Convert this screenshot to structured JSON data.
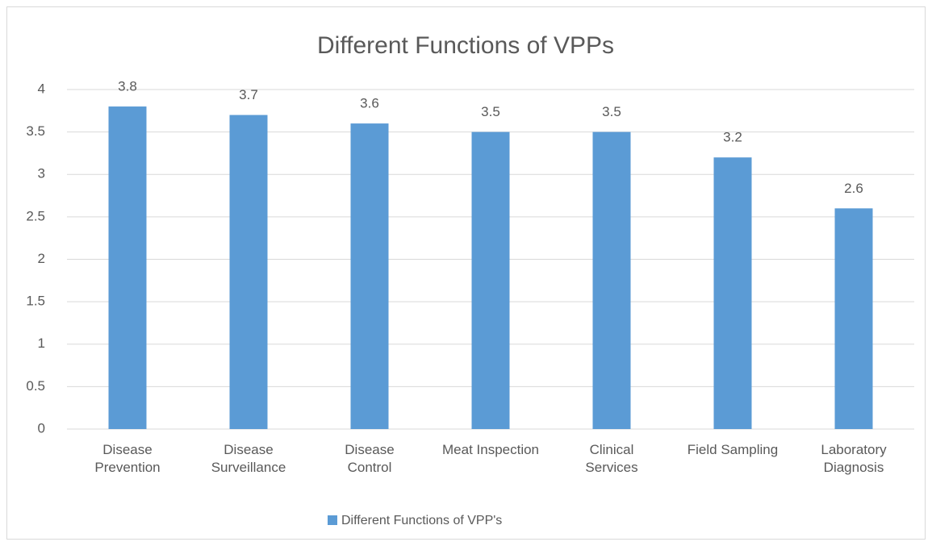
{
  "chart_data": {
    "type": "bar",
    "title": "Different Functions of VPPs",
    "categories": [
      "Disease Prevention",
      "Disease Surveillance",
      "Disease Control",
      "Meat Inspection",
      "Clinical Services",
      "Field Sampling",
      "Laboratory Diagnosis"
    ],
    "series": [
      {
        "name": "Different Functions of VPP's",
        "color": "#5b9bd5",
        "values": [
          3.8,
          3.7,
          3.6,
          3.5,
          3.5,
          3.2,
          2.6
        ]
      }
    ],
    "ylim": [
      0,
      4
    ],
    "yticks": [
      0,
      0.5,
      1,
      1.5,
      2,
      2.5,
      3,
      3.5,
      4
    ],
    "grid": true,
    "legend": "bottom",
    "data_labels": true
  }
}
